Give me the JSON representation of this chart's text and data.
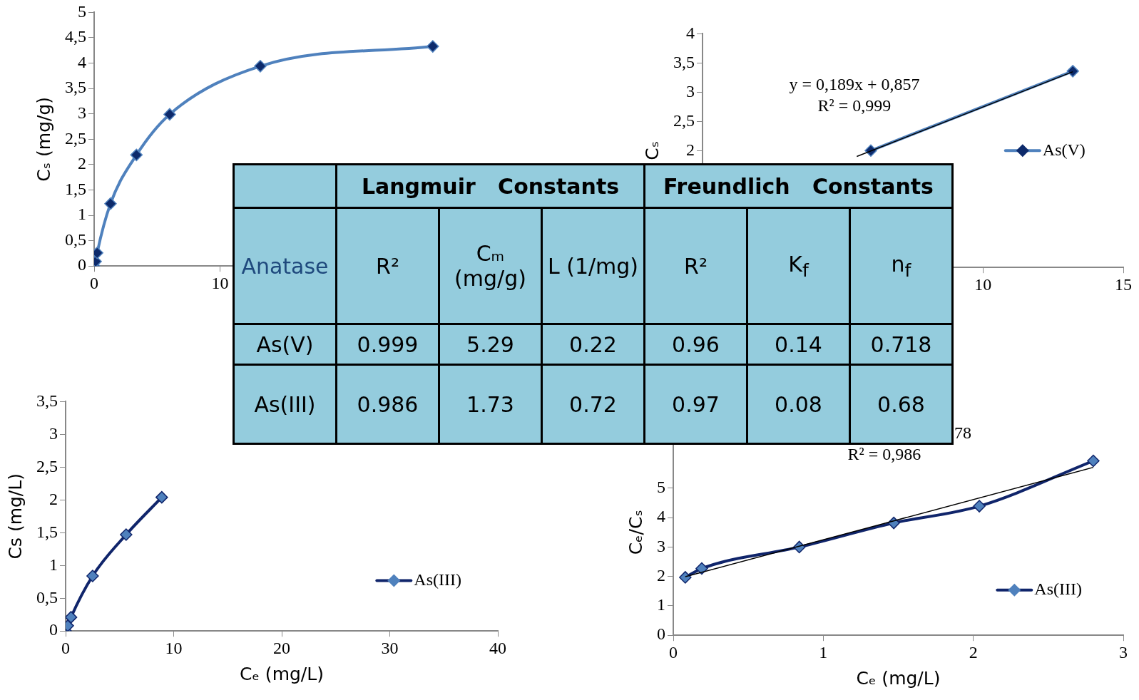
{
  "chart_data": [
    {
      "type": "line",
      "ylabel": "Cₛ (mg/g)",
      "xlim": [
        0,
        40
      ],
      "ylim": [
        0,
        5
      ],
      "xticks": [
        0,
        10
      ],
      "yticks": [
        0,
        {
          "value": 0.5,
          "label": "0,5"
        },
        1,
        {
          "value": 1.5,
          "label": "1,5"
        },
        2,
        {
          "value": 2.5,
          "label": "2,5"
        },
        3,
        {
          "value": 3.5,
          "label": "3,5"
        },
        4,
        {
          "value": 4.5,
          "label": "4,5"
        },
        5
      ],
      "marker": "diamond",
      "series": [
        {
          "color": "#4f81bd",
          "colors": [
            "#0d2a6b",
            "#0d2a6b",
            "#0d2a6b",
            "#0d2a6b",
            "#0d2a6b",
            "#0d2a6b",
            "#0d2a6b",
            "#0d2a6b"
          ],
          "x": [
            0,
            0.12,
            0.24,
            1.3,
            3.36,
            6.0,
            13.2,
            26.9
          ],
          "values": [
            0,
            0.09,
            0.26,
            1.23,
            2.19,
            2.99,
            3.94,
            4.33
          ]
        }
      ]
    },
    {
      "type": "line",
      "ylabel": "Cₛ",
      "xlim": [
        0,
        15
      ],
      "ylim": [
        0,
        4
      ],
      "xticks": [
        10,
        15
      ],
      "yticks": [
        2,
        {
          "value": 2.5,
          "label": "2,5"
        },
        3,
        {
          "value": 3.5,
          "label": "3,5"
        },
        4
      ],
      "marker": "diamond",
      "legend": "right",
      "annotations": [
        "y = 0,189x + 0,857",
        "R² = 0,999"
      ],
      "series": [
        {
          "name": "As(V)",
          "color": "#4f81bd",
          "colors": [
            "#0d2a6b",
            "#0d2a6b"
          ],
          "x": [
            6.0,
            13.2
          ],
          "values": [
            2.0,
            3.36
          ]
        },
        {
          "type": "line",
          "marker": "none",
          "color": "#000000",
          "x": [
            5.5,
            13.2
          ],
          "values": [
            1.9,
            3.35
          ]
        }
      ]
    },
    {
      "type": "line",
      "xlabel": "Cₑ (mg/L)",
      "ylabel": "Cs (mg/L)",
      "xlim": [
        0,
        40
      ],
      "ylim": [
        0,
        3.5
      ],
      "xticks": [
        0,
        10,
        20,
        30,
        40
      ],
      "yticks": [
        0,
        {
          "value": 0.5,
          "label": "0,5"
        },
        1,
        {
          "value": 1.5,
          "label": "1,5"
        },
        2,
        {
          "value": 2.5,
          "label": "2,5"
        },
        3,
        {
          "value": 3.5,
          "label": "3,5"
        }
      ],
      "marker": "diamond",
      "legend": "bottom right",
      "series": [
        {
          "name": "As(III)",
          "color": "#10256b",
          "colors": [
            "#4f81bd",
            "#4f81bd",
            "#4f81bd",
            "#4f81bd",
            "#4f81bd",
            "#4f81bd"
          ],
          "x": [
            0,
            0.2,
            0.5,
            2.5,
            5.6,
            8.9
          ],
          "values": [
            0,
            0.08,
            0.21,
            0.84,
            1.47,
            2.04
          ]
        }
      ]
    },
    {
      "type": "line",
      "xlabel": "Cₑ (mg/L)",
      "ylabel": "Cₑ/Cₛ",
      "xlim": [
        0,
        3
      ],
      "ylim": [
        0,
        7
      ],
      "xticks": [
        0,
        1,
        2,
        3
      ],
      "yticks": [
        0,
        1,
        2,
        3,
        4,
        5
      ],
      "marker": "diamond",
      "legend": "bottom right",
      "annotations": [
        "78",
        "R² = 0,986"
      ],
      "series": [
        {
          "name": "As(III)",
          "color": "#10256b",
          "colors": [
            "#4f81bd",
            "#4f81bd",
            "#4f81bd",
            "#4f81bd",
            "#4f81bd",
            "#4f81bd"
          ],
          "x": [
            0.08,
            0.19,
            0.84,
            1.47,
            2.04,
            2.8
          ],
          "values": [
            1.97,
            2.27,
            3.0,
            3.82,
            4.39,
            5.93
          ]
        },
        {
          "type": "line",
          "marker": "none",
          "color": "#000000",
          "x": [
            0.08,
            2.8
          ],
          "values": [
            1.99,
            5.71
          ]
        }
      ]
    },
    {
      "type": "other",
      "title": "Anatase",
      "annotations": [
        "Langmuir   Constants",
        "Freundlich   Constants"
      ],
      "categories": [
        "R²",
        "Cₘ (mg/g)",
        "L (1/mg)",
        "R²",
        "K$_{f}$",
        "n$_{f}$"
      ],
      "y_categories": [
        "As(V)",
        "As(III)"
      ],
      "cell_labels": [
        [
          "0.999",
          "5.29",
          "0.22",
          "0.96",
          "0.14",
          "0.718"
        ],
        [
          "0.986",
          "1.73",
          "0.72",
          "0.97",
          "0.08",
          "0.68"
        ]
      ]
    }
  ]
}
